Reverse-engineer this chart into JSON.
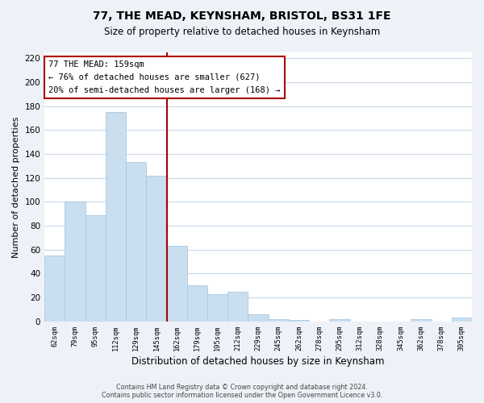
{
  "title": "77, THE MEAD, KEYNSHAM, BRISTOL, BS31 1FE",
  "subtitle": "Size of property relative to detached houses in Keynsham",
  "xlabel": "Distribution of detached houses by size in Keynsham",
  "ylabel": "Number of detached properties",
  "bar_labels": [
    "62sqm",
    "79sqm",
    "95sqm",
    "112sqm",
    "129sqm",
    "145sqm",
    "162sqm",
    "179sqm",
    "195sqm",
    "212sqm",
    "229sqm",
    "245sqm",
    "262sqm",
    "278sqm",
    "295sqm",
    "312sqm",
    "328sqm",
    "345sqm",
    "362sqm",
    "378sqm",
    "395sqm"
  ],
  "bar_values": [
    55,
    100,
    89,
    175,
    133,
    122,
    63,
    30,
    23,
    25,
    6,
    2,
    1,
    0,
    2,
    0,
    0,
    0,
    2,
    0,
    3
  ],
  "bar_color": "#c9dff0",
  "bar_edge_color": "#a8c8e0",
  "vline_color": "#aa0000",
  "annotation_line1": "77 THE MEAD: 159sqm",
  "annotation_line2": "← 76% of detached houses are smaller (627)",
  "annotation_line3": "20% of semi-detached houses are larger (168) →",
  "ylim": [
    0,
    225
  ],
  "yticks": [
    0,
    20,
    40,
    60,
    80,
    100,
    120,
    140,
    160,
    180,
    200,
    220
  ],
  "footer_line1": "Contains HM Land Registry data © Crown copyright and database right 2024.",
  "footer_line2": "Contains public sector information licensed under the Open Government Licence v3.0.",
  "background_color": "#eef2f8",
  "plot_background_color": "#ffffff",
  "grid_color": "#c8d8ea"
}
